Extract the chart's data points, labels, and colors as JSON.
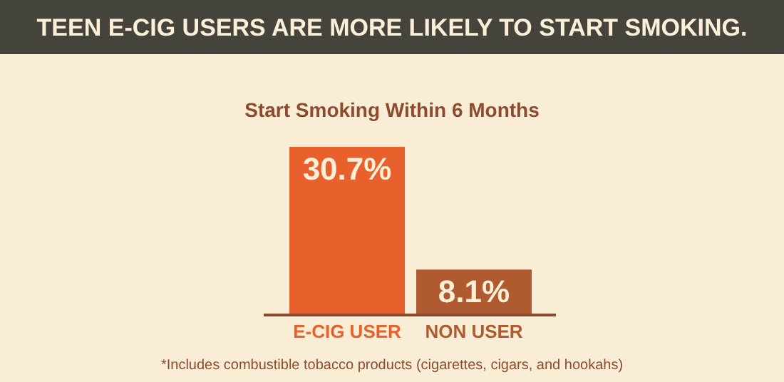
{
  "chart_data": {
    "type": "bar",
    "title": "TEEN E-CIG USERS ARE MORE LIKELY TO START SMOKING.",
    "subtitle": "Start Smoking Within 6 Months",
    "categories": [
      "E-CIG USER",
      "NON USER"
    ],
    "values": [
      30.7,
      8.1
    ],
    "colors": [
      "#e8602c",
      "#b05a30"
    ],
    "value_labels": [
      "30.7%",
      "8.1%"
    ],
    "annotations": [
      "*Includes combustible tobacco products (cigarettes, cigars, and hookahs)"
    ]
  }
}
